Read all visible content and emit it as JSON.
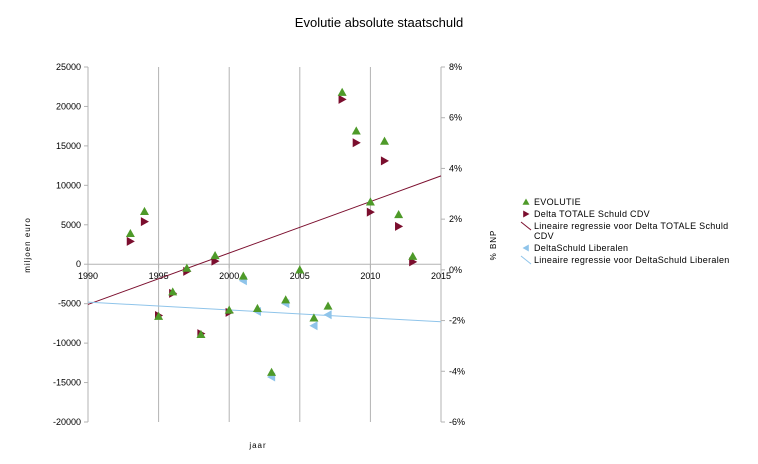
{
  "chart_data": {
    "type": "scatter",
    "title": "Evolutie absolute staatschuld",
    "xlabel": "jaar",
    "ylabel": "miljoen euro",
    "y2label": "% BNP",
    "xlim": [
      1990,
      2015
    ],
    "ylim": [
      -20000,
      25000
    ],
    "y2lim": [
      -6,
      8
    ],
    "x_ticks": [
      "1990",
      "1995",
      "2000",
      "2005",
      "2010",
      "2015"
    ],
    "y_ticks": [
      "25000",
      "20000",
      "15000",
      "10000",
      "5000",
      "0",
      "-5000",
      "-10000",
      "-15000",
      "-20000"
    ],
    "y2_ticks": [
      "8%",
      "6%",
      "4%",
      "2%",
      "0%",
      "-2%",
      "-4%",
      "-6%"
    ],
    "grid": "vertical lines at x ticks",
    "legend_position": "right",
    "colors": {
      "evolutie": "#4e9a29",
      "cdv": "#7b0e2e",
      "cdv_regression": "#7b0e2e",
      "liberalen": "#8fc4ea",
      "liberalen_regression": "#8fc4ea",
      "grid": "#b3b3b3"
    },
    "series": [
      {
        "name": "EVOLUTIE",
        "marker": "triangle-up",
        "axis": "left",
        "x": [
          1993,
          1994,
          1995,
          1996,
          1997,
          1998,
          1999,
          2000,
          2001,
          2002,
          2003,
          2004,
          2005,
          2006,
          2007,
          2008,
          2009,
          2010,
          2011,
          2012,
          2013
        ],
        "y": [
          3900,
          6700,
          -6600,
          -3500,
          -500,
          -8900,
          1100,
          -5800,
          -1500,
          -5600,
          -13700,
          -4500,
          -700,
          -6800,
          -5300,
          21800,
          16900,
          7900,
          15600,
          6300,
          1000
        ]
      },
      {
        "name": "Delta TOTALE Schuld CDV",
        "marker": "triangle-right",
        "axis": "left",
        "x": [
          1993,
          1994,
          1995,
          1996,
          1997,
          1998,
          1999,
          2000,
          2008,
          2009,
          2010,
          2011,
          2012,
          2013
        ],
        "y": [
          2900,
          5400,
          -6500,
          -3700,
          -900,
          -8800,
          400,
          -6100,
          20900,
          15400,
          6600,
          13100,
          4800,
          300
        ]
      },
      {
        "name": "Lineaire regressie voor Delta TOTALE Schuld CDV",
        "type": "line",
        "axis": "left",
        "x": [
          1990,
          2015
        ],
        "y": [
          -5100,
          11200
        ]
      },
      {
        "name": "DeltaSchuld Liberalen",
        "marker": "triangle-left",
        "axis": "left",
        "x": [
          2001,
          2002,
          2003,
          2004,
          2006,
          2007
        ],
        "y": [
          -2100,
          -6000,
          -14300,
          -5000,
          -7800,
          -6400
        ]
      },
      {
        "name": "Lineaire regressie voor DeltaSchuld Liberalen",
        "type": "line",
        "axis": "left",
        "x": [
          1990,
          2015
        ],
        "y": [
          -4800,
          -7300
        ]
      }
    ],
    "legend": [
      {
        "label": "EVOLUTIE",
        "kind": "triangle-up",
        "color": "#4e9a29"
      },
      {
        "label": "Delta TOTALE Schuld CDV",
        "kind": "triangle-right",
        "color": "#7b0e2e"
      },
      {
        "label": "Lineaire regressie voor Delta TOTALE Schuld CDV",
        "kind": "line",
        "color": "#7b0e2e"
      },
      {
        "label": "DeltaSchuld Liberalen",
        "kind": "triangle-left",
        "color": "#8fc4ea"
      },
      {
        "label": "Lineaire regressie voor DeltaSchuld Liberalen",
        "kind": "line",
        "color": "#8fc4ea"
      }
    ]
  }
}
